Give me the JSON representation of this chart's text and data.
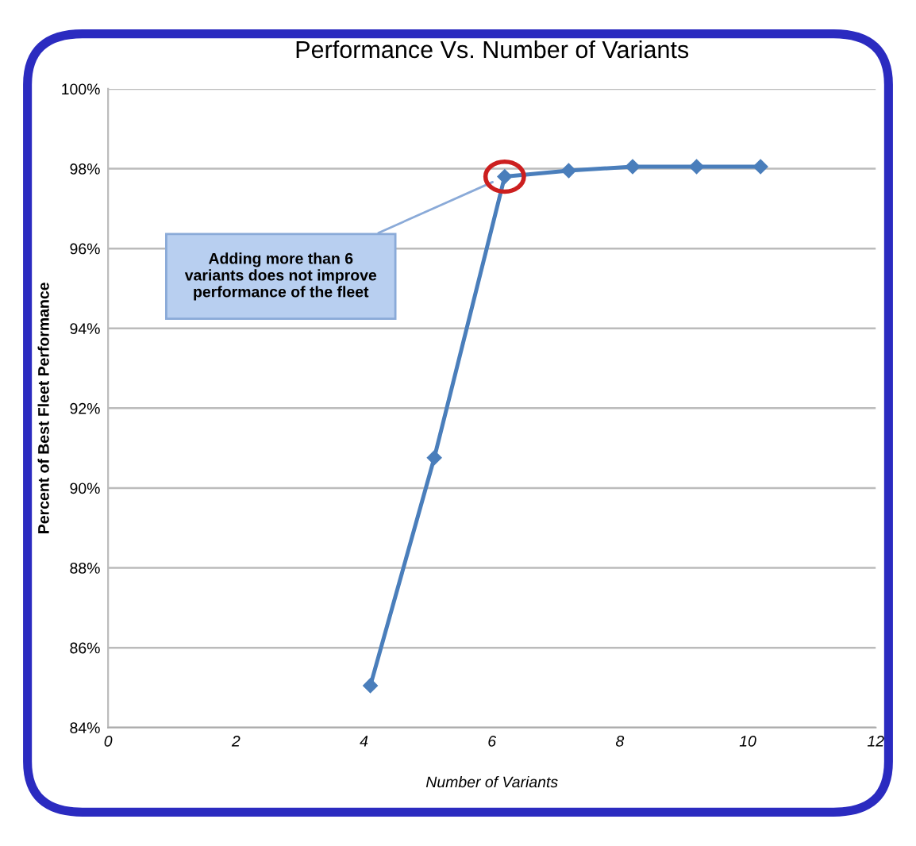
{
  "chart_data": {
    "type": "line",
    "title": "Performance Vs. Number of Variants",
    "xlabel": "Number of Variants",
    "ylabel": "Percent of Best Fleet Performance",
    "x": [
      4.1,
      5.1,
      6.2,
      7.2,
      8.2,
      9.2,
      10.2
    ],
    "series": [
      {
        "color": "#4a7ebb",
        "values": [
          85.05,
          90.76,
          97.8,
          97.95,
          98.05,
          98.05,
          98.05
        ]
      }
    ],
    "xlim": [
      0,
      12
    ],
    "xticks": [
      0,
      2,
      4,
      6,
      8,
      10,
      12
    ],
    "ylim": [
      84,
      100
    ],
    "yticks": [
      {
        "value": 84,
        "label": "84%"
      },
      {
        "value": 86,
        "label": "86%"
      },
      {
        "value": 88,
        "label": "88%"
      },
      {
        "value": 90,
        "label": "90%"
      },
      {
        "value": 92,
        "label": "92%"
      },
      {
        "value": 94,
        "label": "94%"
      },
      {
        "value": 96,
        "label": "96%"
      },
      {
        "value": 98,
        "label": "98%"
      },
      {
        "value": 100,
        "label": "100%"
      }
    ],
    "grid": "y",
    "marker": "diamond",
    "line_style": "solid",
    "legend": false,
    "annotations": [
      {
        "text": "Adding more than 6\nvariants does not improve\nperformance of the fleet",
        "x": 6.2,
        "y": 97.8
      }
    ]
  }
}
